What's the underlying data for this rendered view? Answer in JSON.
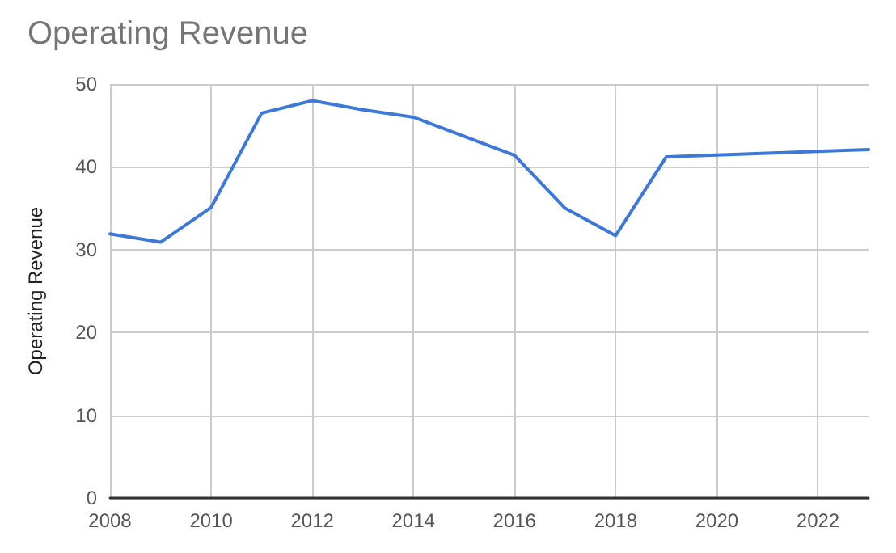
{
  "chart_data": {
    "type": "line",
    "title": "Operating Revenue",
    "ylabel": "Operating Revenue",
    "x": [
      2008,
      2009,
      2010,
      2011,
      2012,
      2013,
      2014,
      2016,
      2017,
      2018,
      2019,
      2023
    ],
    "series": [
      {
        "color": "#3c78d8",
        "values": [
          31.9,
          30.9,
          35.1,
          46.5,
          48,
          46.9,
          46,
          41.4,
          35,
          31.7,
          41.2,
          42.1
        ]
      }
    ],
    "xlim": [
      2008,
      2023
    ],
    "xticks": [
      2008,
      2010,
      2012,
      2014,
      2016,
      2018,
      2020,
      2022
    ],
    "ylim": [
      0,
      50
    ],
    "yticks": [
      0,
      10,
      20,
      30,
      40,
      50
    ],
    "grid": true,
    "marker": "none",
    "line_style": "solid"
  }
}
